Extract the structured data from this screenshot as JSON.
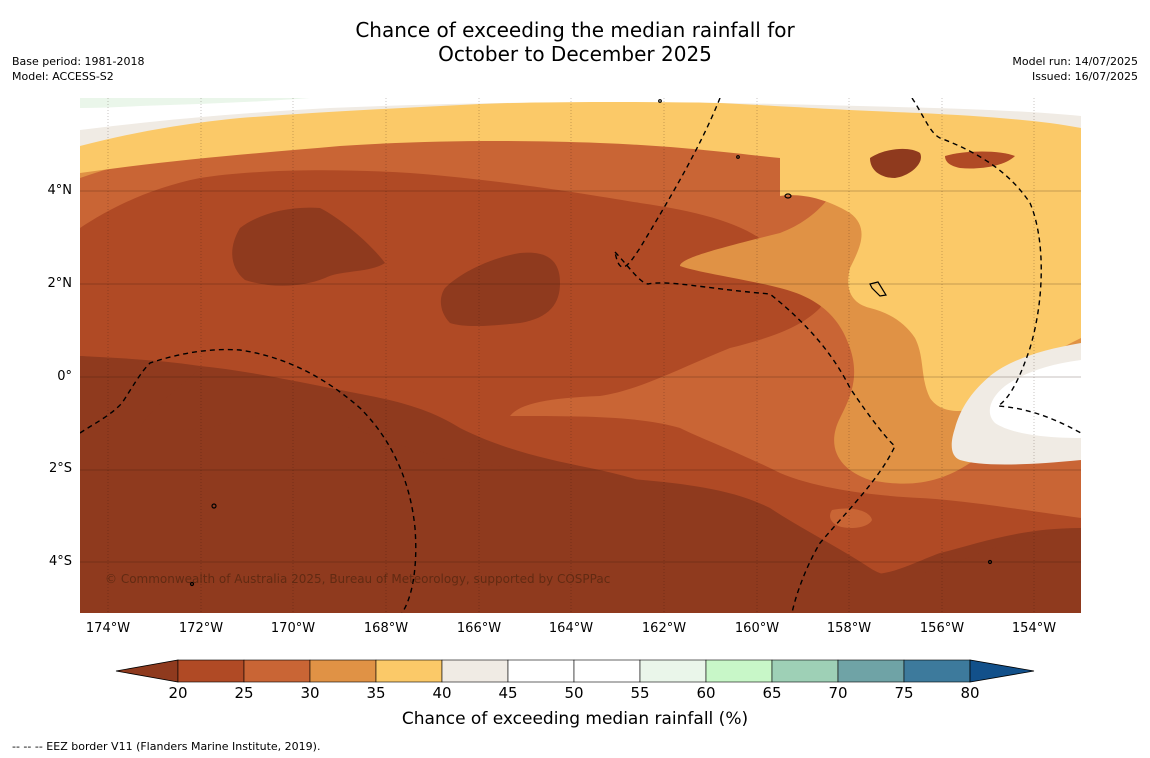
{
  "title": {
    "line1": "Chance of exceeding the median rainfall for",
    "line2": "October to December 2025"
  },
  "meta_left": {
    "base_period": "Base period: 1981-2018",
    "model": "Model: ACCESS-S2"
  },
  "meta_right": {
    "model_run": "Model run: 14/07/2025",
    "issued": "Issued: 16/07/2025"
  },
  "map": {
    "copyright": "© Commonwealth of Australia 2025, Bureau of Meteorology, supported by COSPPac",
    "lat_labels": [
      "4°N",
      "2°N",
      "0°",
      "2°S",
      "4°S"
    ],
    "lon_labels": [
      "174°W",
      "172°W",
      "170°W",
      "168°W",
      "166°W",
      "164°W",
      "162°W",
      "160°W",
      "158°W",
      "156°W",
      "154°W"
    ],
    "lat_range": [
      "5.2°S",
      "6°N"
    ],
    "lon_range": [
      "174.6°W",
      "153°W"
    ]
  },
  "colorbar": {
    "label": "Chance of exceeding median rainfall (%)",
    "ticks": [
      "20",
      "25",
      "30",
      "35",
      "40",
      "45",
      "50",
      "55",
      "60",
      "65",
      "70",
      "75",
      "80"
    ],
    "colors": [
      "#8f3a1e",
      "#b04a25",
      "#c96535",
      "#e09245",
      "#fbc968",
      "#f0ebe4",
      "#ffffff",
      "#ffffff",
      "#eaf6ea",
      "#c8f7c8",
      "#9ed0b6",
      "#6fa3a6",
      "#3d7a9c",
      "#12508a"
    ]
  },
  "footnote": "--  --  -- EEZ border V11 (Flanders Marine Institute, 2019)."
}
